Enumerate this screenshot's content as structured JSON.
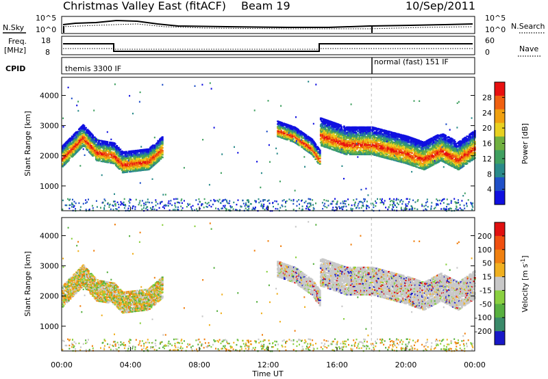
{
  "header": {
    "title": "Christmas Valley East (fitACF)",
    "beam": "Beam 19",
    "date": "10/Sep/2011"
  },
  "top_panels": {
    "nsky_label": "N.Sky",
    "nsky_ticks": [
      "10^5",
      "10^0"
    ],
    "nsearch_label": "N.Search",
    "nsearch_ticks": [
      "10^5",
      "10^0"
    ],
    "freq_label_1": "Freq.",
    "freq_label_2": "[MHz]",
    "freq_ticks": [
      "18",
      "8"
    ],
    "nave_label": "Nave",
    "nave_ticks": [
      "60",
      "0"
    ],
    "cpid_label": "CPID",
    "cpid_1": "themis 3300 IF",
    "cpid_2": "normal (fast) 151 IF"
  },
  "chart_data": [
    {
      "type": "heatmap",
      "name": "Power",
      "ylabel": "Slant Range [km]",
      "xlabel": "Time UT",
      "xticks": [
        "00:00",
        "04:00",
        "08:00",
        "12:00",
        "16:00",
        "20:00",
        "00:00"
      ],
      "yticks": [
        1000,
        2000,
        3000,
        4000
      ],
      "ylim": [
        180,
        4600
      ],
      "xlim_hours": [
        0,
        24
      ],
      "colorbar": {
        "label": "Power [dB]",
        "ticks": [
          "4",
          "8",
          "12",
          "16",
          "20",
          "24",
          "28"
        ],
        "colors": [
          "#1010e0",
          "#2050c8",
          "#2a8a8a",
          "#40a060",
          "#70b040",
          "#e8d020",
          "#f0a010",
          "#f06010",
          "#e81010"
        ]
      },
      "echo_bands": [
        {
          "t": [
            0.0,
            1.2,
            2.0,
            3.0,
            3.5,
            5.0,
            5.8
          ],
          "center_km": [
            2000,
            2700,
            2200,
            2100,
            1800,
            1900,
            2300
          ],
          "width_km": 350
        },
        {
          "t": [
            12.5,
            13.5,
            14.5,
            15.0
          ],
          "center_km": [
            2900,
            2700,
            2300,
            1900
          ],
          "width_km": 250
        },
        {
          "t": [
            15.0,
            16.5,
            18.0,
            20.0,
            21.0,
            22.0,
            23.0,
            24.0
          ],
          "center_km": [
            2800,
            2500,
            2500,
            2200,
            2000,
            2300,
            2000,
            2400
          ],
          "width_km": 450
        }
      ]
    },
    {
      "type": "heatmap",
      "name": "Velocity",
      "ylabel": "Slant Range [km]",
      "xlabel": "Time UT",
      "xticks": [
        "00:00",
        "04:00",
        "08:00",
        "12:00",
        "16:00",
        "20:00",
        "00:00"
      ],
      "yticks": [
        1000,
        2000,
        3000,
        4000
      ],
      "ylim": [
        180,
        4600
      ],
      "xlim_hours": [
        0,
        24
      ],
      "colorbar": {
        "label": "Velocity [m s",
        "label_exp": "-1",
        "label_end": "]",
        "ticks": [
          "200",
          "100",
          "50",
          "15",
          "-15",
          "-50",
          "-100",
          "-200"
        ],
        "colors": [
          "#1818c8",
          "#3a8a6a",
          "#58b040",
          "#8ad040",
          "#c8c8c8",
          "#f0b020",
          "#f08010",
          "#f05010",
          "#e01010"
        ]
      },
      "echo_bands": [
        {
          "t": [
            0.0,
            1.2,
            2.0,
            3.0,
            3.5,
            5.0,
            5.8
          ],
          "center_km": [
            2000,
            2700,
            2200,
            2100,
            1800,
            1900,
            2300
          ],
          "width_km": 350
        },
        {
          "t": [
            12.5,
            13.5,
            14.5,
            15.0
          ],
          "center_km": [
            2900,
            2700,
            2300,
            1900
          ],
          "width_km": 250
        },
        {
          "t": [
            15.0,
            16.5,
            18.0,
            20.0,
            21.0,
            22.0,
            23.0,
            24.0
          ],
          "center_km": [
            2800,
            2500,
            2500,
            2200,
            2000,
            2300,
            2000,
            2400
          ],
          "width_km": 450
        }
      ]
    }
  ]
}
